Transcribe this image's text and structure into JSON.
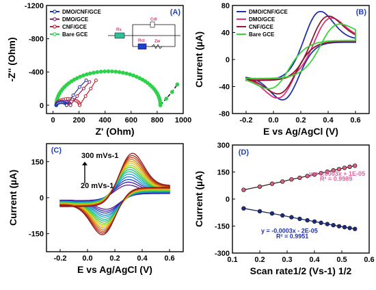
{
  "chart_data": [
    {
      "panel": "(A)",
      "type": "scatter-line",
      "xlabel": "Z' (Ohm)",
      "ylabel": "-Z'' (Ohm)",
      "xlim": [
        -50,
        1000
      ],
      "ylim": [
        -1200,
        100
      ],
      "xticks": [
        0,
        200,
        400,
        600,
        800,
        1000
      ],
      "yticks": [
        0,
        -400,
        -800,
        -1200
      ],
      "ytick_labels": [
        "0",
        "-400",
        "-800",
        "-1200"
      ],
      "legend": [
        "DMO/CNF/GCE",
        "DMO/GCE",
        "CNF/GCE",
        "Bare GCE"
      ],
      "legend_position": "top-left",
      "circuit_labels": [
        "Cdl",
        "Rs",
        "Rct",
        "Zw"
      ],
      "series": [
        {
          "name": "DMO/CNF/GCE",
          "color": "#1f2fb0",
          "marker": "circle",
          "rct": 80,
          "rs": 25,
          "tail": [
            [
              105,
              0
            ],
            [
              155,
              -120
            ],
            [
              205,
              -220
            ],
            [
              255,
              -300
            ]
          ]
        },
        {
          "name": "DMO/GCE",
          "color": "#8b2252",
          "marker": "circle",
          "rct": 110,
          "rs": 25,
          "tail": [
            [
              135,
              0
            ],
            [
              185,
              -110
            ],
            [
              235,
              -200
            ],
            [
              280,
              -280
            ]
          ]
        },
        {
          "name": "CNF/GCE",
          "color": "#b5212f",
          "marker": "circle",
          "rct": 180,
          "rs": 25,
          "tail": [
            [
              205,
              0
            ],
            [
              250,
              -110
            ],
            [
              290,
              -200
            ],
            [
              330,
              -300
            ]
          ]
        },
        {
          "name": "Bare GCE",
          "color": "#2ed14a",
          "marker": "circle",
          "rct": 800,
          "rs": 25,
          "tail": [
            [
              825,
              0
            ],
            [
              870,
              -80
            ],
            [
              915,
              -160
            ],
            [
              955,
              -250
            ]
          ]
        }
      ]
    },
    {
      "panel": "(B)",
      "type": "line",
      "xlabel": "E vs Ag/AgCl  (V)",
      "ylabel": "Current (µA)",
      "xlim": [
        -0.3,
        0.7
      ],
      "ylim": [
        -80,
        80
      ],
      "xticks": [
        -0.2,
        0.0,
        0.2,
        0.4,
        0.6
      ],
      "xtick_labels": [
        "-0.2",
        "0.0",
        "0.2",
        "0.4",
        "0.6"
      ],
      "yticks": [
        -80,
        -40,
        0,
        40,
        80
      ],
      "legend": [
        "DMO/CNF/GCE",
        "DMO/GCE",
        "CNF/GCE",
        "Bare GCE"
      ],
      "legend_position": "top-left",
      "series": [
        {
          "name": "DMO/CNF/GCE",
          "color": "#1f2fb0",
          "Epa": 0.31,
          "Ipa": 68,
          "Epc": 0.1,
          "Ipc": -58,
          "w": 0.11,
          "i0": -30,
          "i1": 30
        },
        {
          "name": "DMO/GCE",
          "color": "#e0307a",
          "Epa": 0.38,
          "Ipa": 57,
          "Epc": 0.07,
          "Ipc": -55,
          "w": 0.12,
          "i0": -30,
          "i1": 31
        },
        {
          "name": "CNF/GCE",
          "color": "#8b1a2e",
          "Epa": 0.36,
          "Ipa": 60,
          "Epc": 0.08,
          "Ipc": -48,
          "w": 0.12,
          "i0": -31,
          "i1": 31
        },
        {
          "name": "Bare GCE",
          "color": "#3ad43a",
          "Epa": 0.42,
          "Ipa": 45,
          "Epc": 0.03,
          "Ipc": -40,
          "w": 0.14,
          "i0": -28,
          "i1": 33
        }
      ]
    },
    {
      "panel": "(C)",
      "type": "line",
      "xlabel": "E vs Ag/AgCl  (V)",
      "ylabel": "Current (µA)",
      "xlim": [
        -0.3,
        0.7
      ],
      "ylim": [
        -225,
        225
      ],
      "xticks": [
        -0.2,
        0.0,
        0.2,
        0.4,
        0.6
      ],
      "xtick_labels": [
        "-0.2",
        "0.0",
        "0.2",
        "0.4",
        "0.6"
      ],
      "yticks": [
        -150,
        0,
        150
      ],
      "annotations": [
        "300 mVs-1",
        "20 mVs-1"
      ],
      "scan_rates_mVs": [
        20,
        40,
        60,
        80,
        100,
        120,
        140,
        160,
        180,
        200,
        220,
        240,
        260,
        280,
        300
      ],
      "Ipa": [
        50,
        62,
        73,
        84,
        95,
        105,
        114,
        123,
        131,
        139,
        147,
        155,
        163,
        171,
        180
      ],
      "Ipc": [
        -50,
        -58,
        -66,
        -75,
        -83,
        -92,
        -100,
        -108,
        -115,
        -122,
        -129,
        -136,
        -143,
        -150,
        -157
      ],
      "colors": [
        "#5a1a8a",
        "#3a1fa8",
        "#1f3ec0",
        "#1f7ad0",
        "#17a8c8",
        "#14b89a",
        "#1fbf6a",
        "#5acb3a",
        "#a4d41f",
        "#d8cc17",
        "#e0a018",
        "#d8751a",
        "#c84a1c",
        "#a82a1c",
        "#8b1a1a"
      ]
    },
    {
      "panel": "(D)",
      "type": "scatter-line",
      "xlabel": "Scan rate1/2 (Vs-1) 1/2",
      "ylabel": "Current (µA)",
      "xlim": [
        0.1,
        0.6
      ],
      "ylim": [
        -300,
        300
      ],
      "xticks": [
        0.1,
        0.2,
        0.3,
        0.4,
        0.5,
        0.6
      ],
      "xtick_labels": [
        "0.1",
        "0.2",
        "0.3",
        "0.4",
        "0.5",
        "0.6"
      ],
      "yticks": [
        -300,
        -150,
        0,
        150,
        300
      ],
      "series": [
        {
          "name": "anodic",
          "marker_color": "#e06080",
          "line_color": "#3a2020",
          "equation": "y = 0.0003x + 1E-05",
          "r2": "R² = 0.9989",
          "eq_color": "#e060a0",
          "x": [
            0.141,
            0.2,
            0.245,
            0.283,
            0.316,
            0.346,
            0.374,
            0.4,
            0.424,
            0.447,
            0.469,
            0.49,
            0.51,
            0.529,
            0.548
          ],
          "y": [
            51,
            69,
            85,
            97,
            109,
            118,
            128,
            136,
            144,
            152,
            159,
            166,
            173,
            179,
            185
          ]
        },
        {
          "name": "cathodic",
          "marker_color": "#1a2a8a",
          "line_color": "#1a2a5a",
          "equation": "y = -0.0003x - 2E-05",
          "r2": "R² = 0.9951",
          "eq_color": "#1f2fb0",
          "x": [
            0.141,
            0.2,
            0.245,
            0.283,
            0.316,
            0.346,
            0.374,
            0.4,
            0.424,
            0.447,
            0.469,
            0.49,
            0.51,
            0.529,
            0.548
          ],
          "y": [
            -52,
            -68,
            -80,
            -91,
            -101,
            -110,
            -118,
            -125,
            -132,
            -139,
            -145,
            -151,
            -156,
            -161,
            -166
          ]
        }
      ]
    }
  ]
}
